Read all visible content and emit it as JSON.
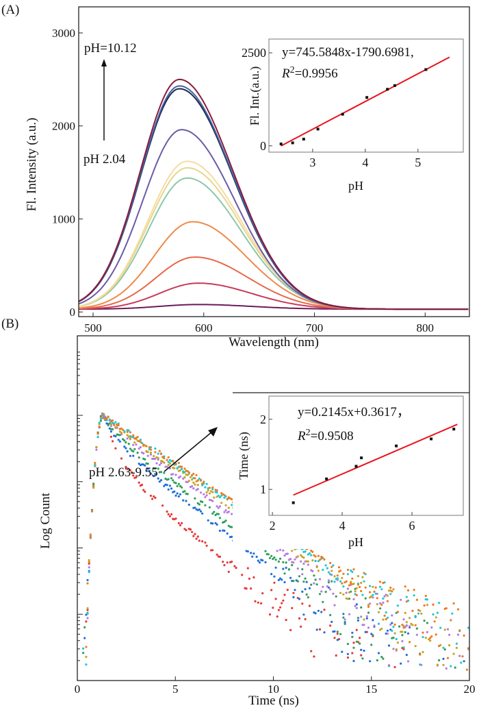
{
  "chart_data": [
    {
      "panel_label": "(A)",
      "type": "line",
      "xlabel": "Wavelength (nm)",
      "ylabel": "Fl. Intensity (a.u.)",
      "xlim": [
        487,
        840
      ],
      "ylim": [
        -50,
        3280
      ],
      "xticks": [
        500,
        600,
        700,
        800
      ],
      "yticks": [
        0,
        1000,
        2000,
        3000
      ],
      "annotation_top": "pH=10.12",
      "annotation_bottom": "pH 2.04",
      "series": [
        {
          "peak_nm": 578,
          "peak": 2470,
          "color": "#8b1a3a"
        },
        {
          "peak_nm": 578,
          "peak": 2400,
          "color": "#3f63a8"
        },
        {
          "peak_nm": 578,
          "peak": 2370,
          "color": "#1f2a4a"
        },
        {
          "peak_nm": 580,
          "peak": 1930,
          "color": "#6a5aa8"
        },
        {
          "peak_nm": 585,
          "peak": 1590,
          "color": "#f5dca0"
        },
        {
          "peak_nm": 585,
          "peak": 1520,
          "color": "#e6d68e"
        },
        {
          "peak_nm": 585,
          "peak": 1410,
          "color": "#8cc8a8"
        },
        {
          "peak_nm": 590,
          "peak": 940,
          "color": "#f08848"
        },
        {
          "peak_nm": 592,
          "peak": 560,
          "color": "#e8684a"
        },
        {
          "peak_nm": 595,
          "peak": 280,
          "color": "#c83a5a"
        },
        {
          "peak_nm": 595,
          "peak": 50,
          "color": "#6a1a5a"
        }
      ],
      "baseline": 30,
      "inset": {
        "type": "scatter",
        "xlabel": "pH",
        "ylabel": "Fl. Int.(a.u.)",
        "xlim": [
          2.17,
          5.86
        ],
        "ylim": [
          -170,
          2870
        ],
        "xticks": [
          3,
          4,
          5
        ],
        "yticks": [
          0,
          2500
        ],
        "equation": "y=745.5848x-1790.6981,",
        "r2_label": "R",
        "r2_sup": "2",
        "r2_value": "=0.9956",
        "x": [
          2.4,
          2.62,
          2.83,
          3.1,
          3.57,
          4.03,
          4.42,
          4.56,
          5.15
        ],
        "y": [
          50,
          80,
          180,
          450,
          850,
          1300,
          1520,
          1620,
          2050
        ],
        "fit": {
          "slope": 745.5848,
          "intercept": -1790.6981,
          "x_range": [
            2.4,
            5.6
          ]
        }
      }
    },
    {
      "panel_label": "(B)",
      "type": "scatter",
      "xlabel": "Time (ns)",
      "ylabel": "Log Count",
      "xlim": [
        0,
        20
      ],
      "ylim_log10": [
        0,
        5.2
      ],
      "xticks": [
        0,
        5,
        10,
        15,
        20
      ],
      "annotation": "pH 2.63-9.55",
      "series": [
        {
          "color": "#e53935",
          "decay_log10_per_ns": 0.26,
          "fast_drop": 0.6
        },
        {
          "color": "#1e6fd9",
          "decay_log10_per_ns": 0.235,
          "fast_drop": 0.3
        },
        {
          "color": "#2e9e5a",
          "decay_log10_per_ns": 0.225,
          "fast_drop": 0.2
        },
        {
          "color": "#b57be0",
          "decay_log10_per_ns": 0.215,
          "fast_drop": 0.1
        },
        {
          "color": "#c9a227",
          "decay_log10_per_ns": 0.205,
          "fast_drop": 0.05
        },
        {
          "color": "#1ec8d8",
          "decay_log10_per_ns": 0.2,
          "fast_drop": 0.0
        },
        {
          "color": "#f07a1a",
          "decay_log10_per_ns": 0.195,
          "fast_drop": 0.0
        }
      ],
      "peak_time_ns": 1.3,
      "peak_log10": 4.0,
      "inset": {
        "type": "scatter",
        "xlabel": "pH",
        "ylabel": "Time (ns)",
        "xlim": [
          1.9,
          7.47
        ],
        "ylim": [
          0.63,
          2.33
        ],
        "xticks": [
          2,
          4,
          6
        ],
        "yticks": [
          1,
          2
        ],
        "equation": "y=0.2145x+0.3617，",
        "r2_label": "R",
        "r2_sup": "2",
        "r2_value": "=0.9508",
        "x": [
          2.6,
          3.55,
          4.4,
          4.55,
          5.55,
          6.55,
          7.2
        ],
        "y": [
          0.81,
          1.15,
          1.33,
          1.45,
          1.62,
          1.72,
          1.86
        ],
        "fit": {
          "slope": 0.2145,
          "intercept": 0.3617,
          "x_range": [
            2.6,
            7.3
          ]
        }
      }
    }
  ]
}
